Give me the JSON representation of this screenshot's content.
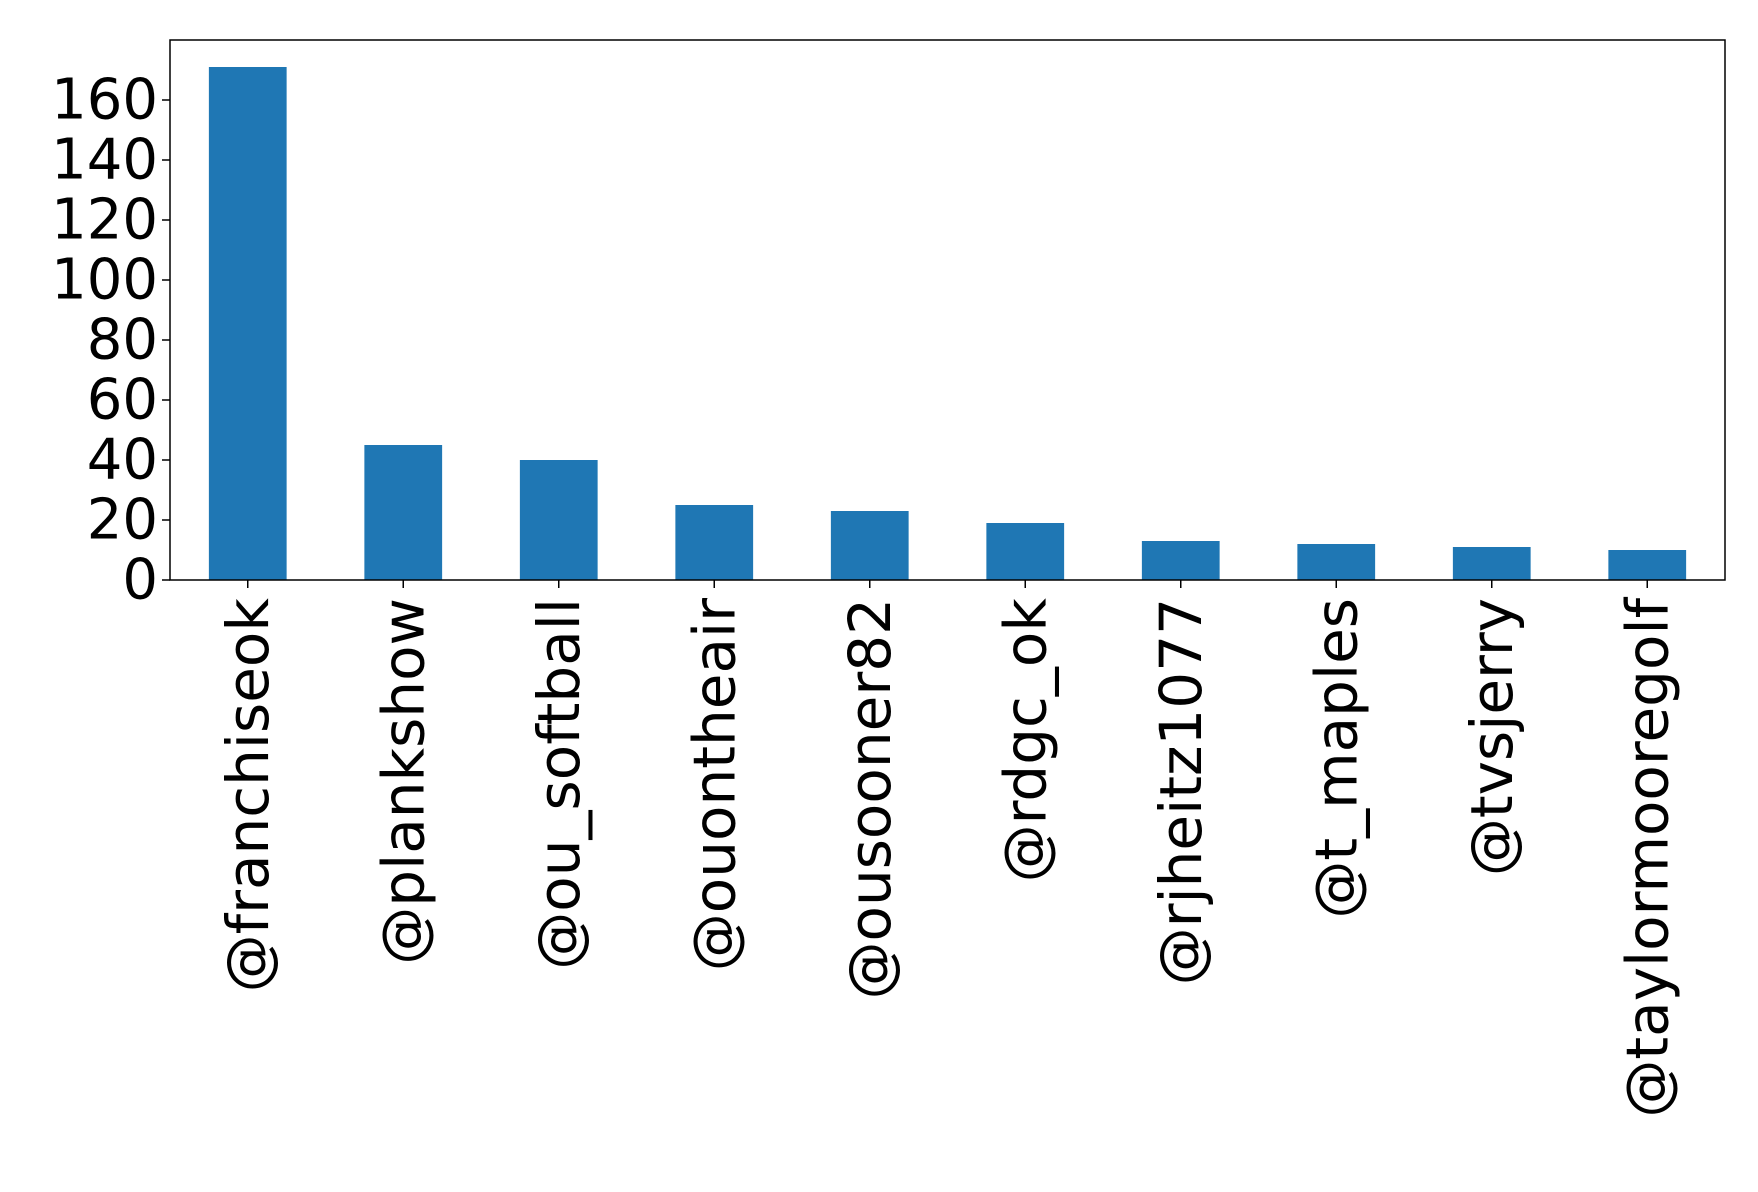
{
  "chart_data": {
    "type": "bar",
    "title": "",
    "xlabel": "",
    "ylabel": "",
    "categories": [
      "@franchiseok",
      "@plankshow",
      "@ou_softball",
      "@ouontheair",
      "@ousooner82",
      "@rdgc_ok",
      "@rjheitz1077",
      "@t_maples",
      "@tvsjerry",
      "@taylormooregolf"
    ],
    "values": [
      171,
      45,
      40,
      25,
      23,
      19,
      13,
      12,
      11,
      10
    ],
    "ylim": [
      0,
      180
    ],
    "yticks": [
      0,
      20,
      40,
      60,
      80,
      100,
      120,
      140,
      160
    ],
    "bar_color": "#1f77b4",
    "grid": false,
    "legend": "none"
  }
}
